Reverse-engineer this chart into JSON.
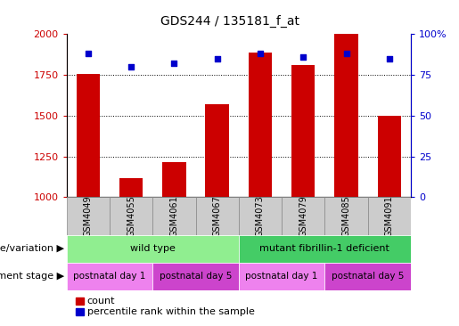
{
  "title": "GDS244 / 135181_f_at",
  "samples": [
    "GSM4049",
    "GSM4055",
    "GSM4061",
    "GSM4067",
    "GSM4073",
    "GSM4079",
    "GSM4085",
    "GSM4091"
  ],
  "counts": [
    1755,
    1115,
    1215,
    1570,
    1890,
    1810,
    2000,
    1500
  ],
  "percentiles": [
    88,
    80,
    82,
    85,
    88,
    86,
    88,
    85
  ],
  "ylim_left": [
    1000,
    2000
  ],
  "ylim_right": [
    0,
    100
  ],
  "yticks_left": [
    1000,
    1250,
    1500,
    1750,
    2000
  ],
  "yticks_right": [
    0,
    25,
    50,
    75,
    100
  ],
  "bar_color": "#cc0000",
  "dot_color": "#0000cc",
  "genotype_groups": [
    {
      "label": "wild type",
      "start": 0,
      "end": 4,
      "color": "#90ee90"
    },
    {
      "label": "mutant fibrillin-1 deficient",
      "start": 4,
      "end": 8,
      "color": "#44cc66"
    }
  ],
  "development_groups": [
    {
      "label": "postnatal day 1",
      "start": 0,
      "end": 2,
      "color": "#ee82ee"
    },
    {
      "label": "postnatal day 5",
      "start": 2,
      "end": 4,
      "color": "#cc44cc"
    },
    {
      "label": "postnatal day 1",
      "start": 4,
      "end": 6,
      "color": "#ee82ee"
    },
    {
      "label": "postnatal day 5",
      "start": 6,
      "end": 8,
      "color": "#cc44cc"
    }
  ],
  "label_genotype": "genotype/variation",
  "label_development": "development stage",
  "legend_count": "count",
  "legend_percentile": "percentile rank within the sample",
  "tick_color_left": "#cc0000",
  "tick_color_right": "#0000cc",
  "xticklabel_bg": "#cccccc",
  "xticklabel_border": "#888888"
}
